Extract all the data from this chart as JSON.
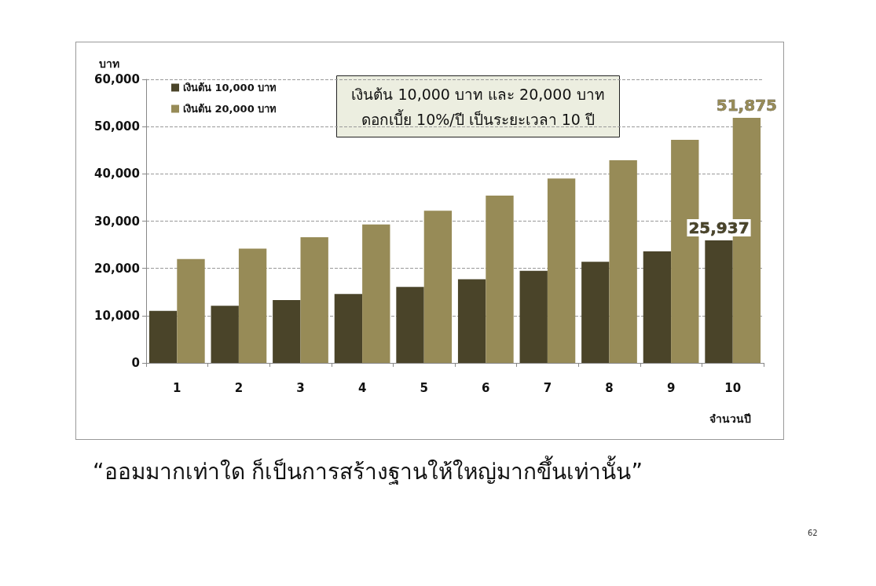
{
  "chart_data": {
    "type": "bar",
    "categories": [
      "1",
      "2",
      "3",
      "4",
      "5",
      "6",
      "7",
      "8",
      "9",
      "10"
    ],
    "xlabel": "จำนวนปี",
    "ylabel": "บาท",
    "series": [
      {
        "name": "เงินต้น 10,000 บาท",
        "color": "#4a4429",
        "values": [
          11000,
          12100,
          13300,
          14600,
          16100,
          17700,
          19500,
          21400,
          23600,
          25937
        ],
        "value_labels": [
          null,
          null,
          null,
          null,
          null,
          null,
          null,
          null,
          null,
          "25,937"
        ]
      },
      {
        "name": "เงินต้น 20,000 บาท",
        "color": "#978b57",
        "values": [
          22000,
          24200,
          26600,
          29300,
          32200,
          35400,
          39000,
          42900,
          47200,
          51875
        ],
        "value_labels": [
          null,
          null,
          null,
          null,
          null,
          null,
          null,
          null,
          null,
          "51,875"
        ]
      }
    ],
    "ylim": [
      0,
      60000
    ],
    "yticks": [
      0,
      {
        "value": 10000,
        "label": "10,000"
      },
      {
        "value": 20000,
        "label": "20,000"
      },
      {
        "value": 30000,
        "label": "30,000"
      },
      {
        "value": 40000,
        "label": "40,000"
      },
      {
        "value": 50000,
        "label": "50,000"
      },
      {
        "value": 60000,
        "label": "60,000"
      }
    ],
    "grid": "y",
    "legend": "top left",
    "annotations": [
      "เงินต้น 10,000 บาท และ 20,000 บาท\nดอกเบี้ย 10%/ปี เป็นระยะเวลา 10 ปี",
      "“ออมมากเท่าใด ก็เป็นการสร้างฐานให้ใหญ่มากขึ้นเท่านั้น”",
      "62"
    ]
  }
}
